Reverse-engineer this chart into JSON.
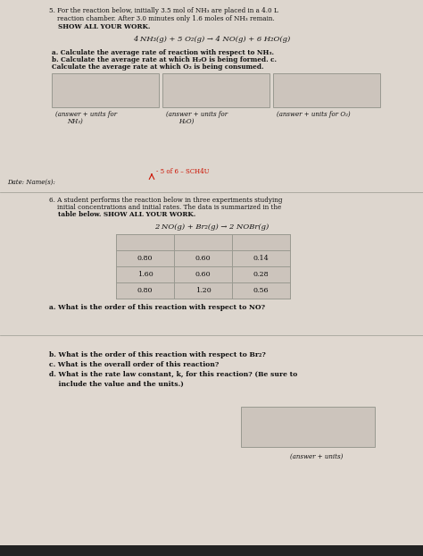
{
  "bg_color": "#d4ccc4",
  "section5_bg": "#ddd6ce",
  "section6_bg": "#ddd6ce",
  "section6b_bg": "#e0d8d0",
  "box_fill": "#ccc4bc",
  "text_color": "#111111",
  "bold_color": "#111111",
  "line_color": "#999990",
  "red_color": "#cc1100",
  "dark_bar": "#222222",
  "s5_line1": "5. For the reaction below, initially 3.5 mol of NH₃ are placed in a 4.0 L",
  "s5_line2": "    reaction chamber. After 3.0 minutes only 1.6 moles of NH₃ remain.",
  "s5_line3": "    SHOW ALL YOUR WORK.",
  "equation5": "4 NH₃(g) + 5 O₂(g) → 4 NO(g) + 6 H₂O(g)",
  "q5a": "a. Calculate the average rate of reaction with respect to NH₃.",
  "q5b": "b. Calculate the average rate at which H₂O is being formed. c.",
  "q5c": "Calculate the average rate at which O₂ is being consumed.",
  "lbl_a1": "(answer + units for",
  "lbl_a2": "NH₃)",
  "lbl_b1": "(answer + units for",
  "lbl_b2": "H₂O)",
  "lbl_c": "(answer + units for O₂)",
  "watermark_text": "- 5 of 6 – SCH4U",
  "date_label": "Date: Name(s):",
  "s6_line1": "6. A student performs the reaction below in three experiments studying",
  "s6_line2": "    initial concentrations and initial rates. The data is summarized in the",
  "s6_line3": "    table below. SHOW ALL YOUR WORK.",
  "equation6": "2 NO(g) + Br₂(g) → 2 NOBr(g)",
  "table_data": [
    [
      "0.80",
      "0.60",
      "0.14"
    ],
    [
      "1.60",
      "0.60",
      "0.28"
    ],
    [
      "0.80",
      "1.20",
      "0.56"
    ]
  ],
  "q6a": "a. What is the order of this reaction with respect to NO?",
  "q6b": "b. What is the order of this reaction with respect to Br₂?",
  "q6c": "c. What is the overall order of this reaction?",
  "q6d1": "d. What is the rate law constant, k, for this reaction? (Be sure to",
  "q6d2": "    include the value and the units.)",
  "answer_label": "(answer + units)"
}
